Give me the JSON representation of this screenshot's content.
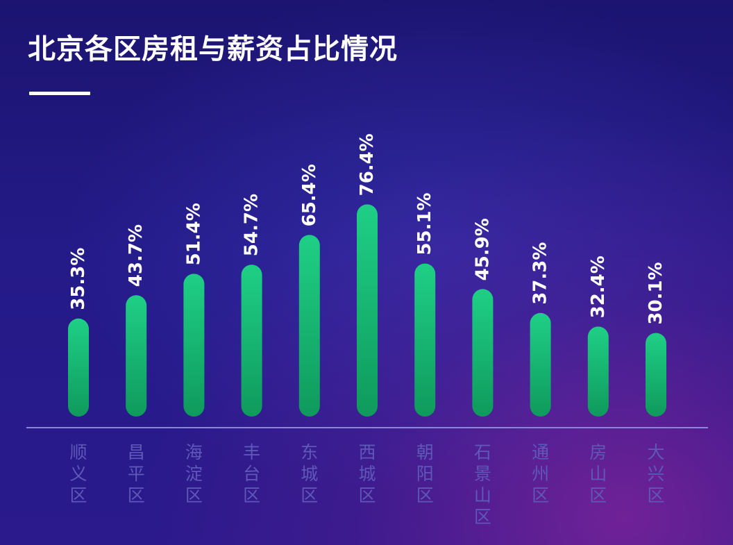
{
  "title": "北京各区房租与薪资占比情况",
  "colors": {
    "bar_top": "#1fcf86",
    "bar_bottom": "#0f9a5c",
    "baseline": "#8a86d8",
    "category_text": "#5e58b8"
  },
  "chart_data": {
    "type": "bar",
    "title": "北京各区房租与薪资占比情况",
    "categories": [
      "顺义区",
      "昌平区",
      "海淀区",
      "丰台区",
      "东城区",
      "西城区",
      "朝阳区",
      "石景山区",
      "通州区",
      "房山区",
      "大兴区"
    ],
    "values": [
      35.3,
      43.7,
      51.4,
      54.7,
      65.4,
      76.4,
      55.1,
      45.9,
      37.3,
      32.4,
      30.1
    ],
    "value_labels": [
      "35.3%",
      "43.7%",
      "51.4%",
      "54.7%",
      "65.4%",
      "76.4%",
      "55.1%",
      "45.9%",
      "37.3%",
      "32.4%",
      "30.1%"
    ],
    "unit": "%",
    "xlabel": "",
    "ylabel": "",
    "ylim": [
      0,
      100
    ],
    "grid": false,
    "legend": "none"
  }
}
